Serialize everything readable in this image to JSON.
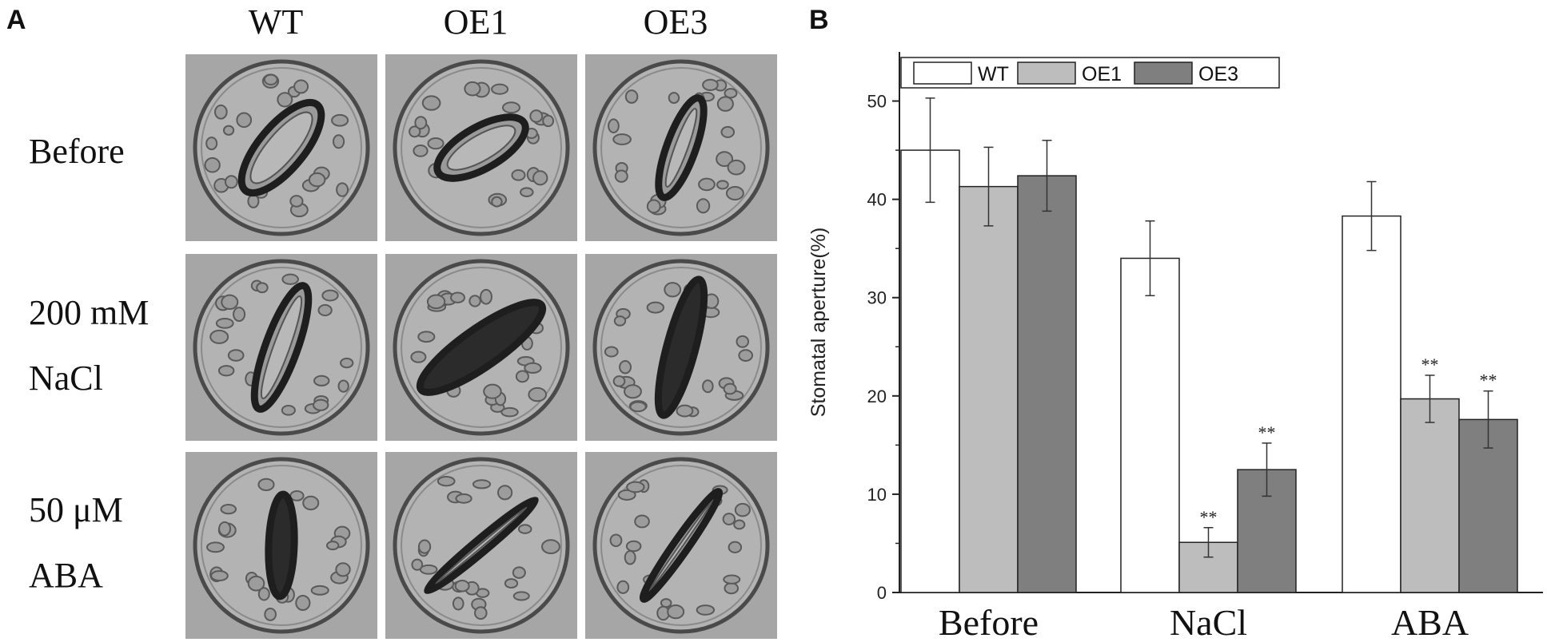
{
  "panel_a": {
    "letter": "A",
    "columns": [
      "WT",
      "OE1",
      "OE3"
    ],
    "rows": [
      {
        "lines": [
          "Before"
        ]
      },
      {
        "lines": [
          "200 mM",
          "NaCl"
        ]
      },
      {
        "lines": [
          "50 μM",
          "ABA"
        ]
      }
    ]
  },
  "panel_b": {
    "letter": "B"
  },
  "colors": {
    "WT": "#ffffff",
    "OE1": "#bdbdbd",
    "OE3": "#7f7f7f"
  },
  "chart_data": {
    "type": "bar",
    "title": "",
    "xlabel": "",
    "ylabel": "Stomatal aperture(%)",
    "categories": [
      "Before",
      "NaCl",
      "ABA"
    ],
    "ylim": [
      0,
      55
    ],
    "yticks": [
      0,
      10,
      20,
      30,
      40,
      50
    ],
    "grid": false,
    "legend": "top-left",
    "series": [
      {
        "name": "WT",
        "values": [
          45.0,
          34.0,
          38.3
        ],
        "errors": [
          5.3,
          3.8,
          3.5
        ],
        "significance": [
          "",
          "",
          ""
        ]
      },
      {
        "name": "OE1",
        "values": [
          41.3,
          5.1,
          19.7
        ],
        "errors": [
          4.0,
          1.5,
          2.4
        ],
        "significance": [
          "",
          "**",
          "**"
        ]
      },
      {
        "name": "OE3",
        "values": [
          42.4,
          12.5,
          17.6
        ],
        "errors": [
          3.6,
          2.7,
          2.9
        ],
        "significance": [
          "",
          "**",
          "**"
        ]
      }
    ]
  }
}
